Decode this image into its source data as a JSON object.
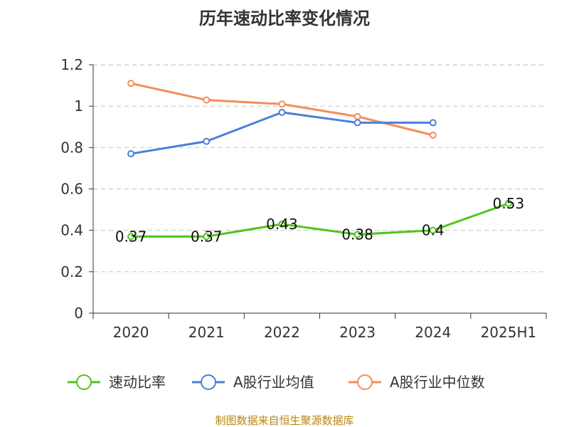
{
  "chart_data": {
    "type": "line",
    "title": "历年速动比率变化情况",
    "categories": [
      "2020",
      "2021",
      "2022",
      "2023",
      "2024",
      "2025H1"
    ],
    "ylim": [
      0,
      1.2
    ],
    "yticks": [
      "0",
      "0.2",
      "0.4",
      "0.6",
      "0.8",
      "1",
      "1.2"
    ],
    "grid": true,
    "legend_position": "bottom",
    "series": [
      {
        "name": "速动比率",
        "color": "#52c41a",
        "values": [
          0.37,
          0.37,
          0.43,
          0.38,
          0.4,
          0.53
        ],
        "labels": [
          "0.37",
          "0.37",
          "0.43",
          "0.38",
          "0.4",
          "0.53"
        ]
      },
      {
        "name": "A股行业均值",
        "color": "#4a7fd9",
        "values": [
          0.77,
          0.83,
          0.97,
          0.92,
          0.92,
          null
        ]
      },
      {
        "name": "A股行业中位数",
        "color": "#f58d5a",
        "values": [
          1.11,
          1.03,
          1.01,
          0.95,
          0.86,
          null
        ]
      }
    ],
    "source": "制图数据来自恒生聚源数据库"
  }
}
